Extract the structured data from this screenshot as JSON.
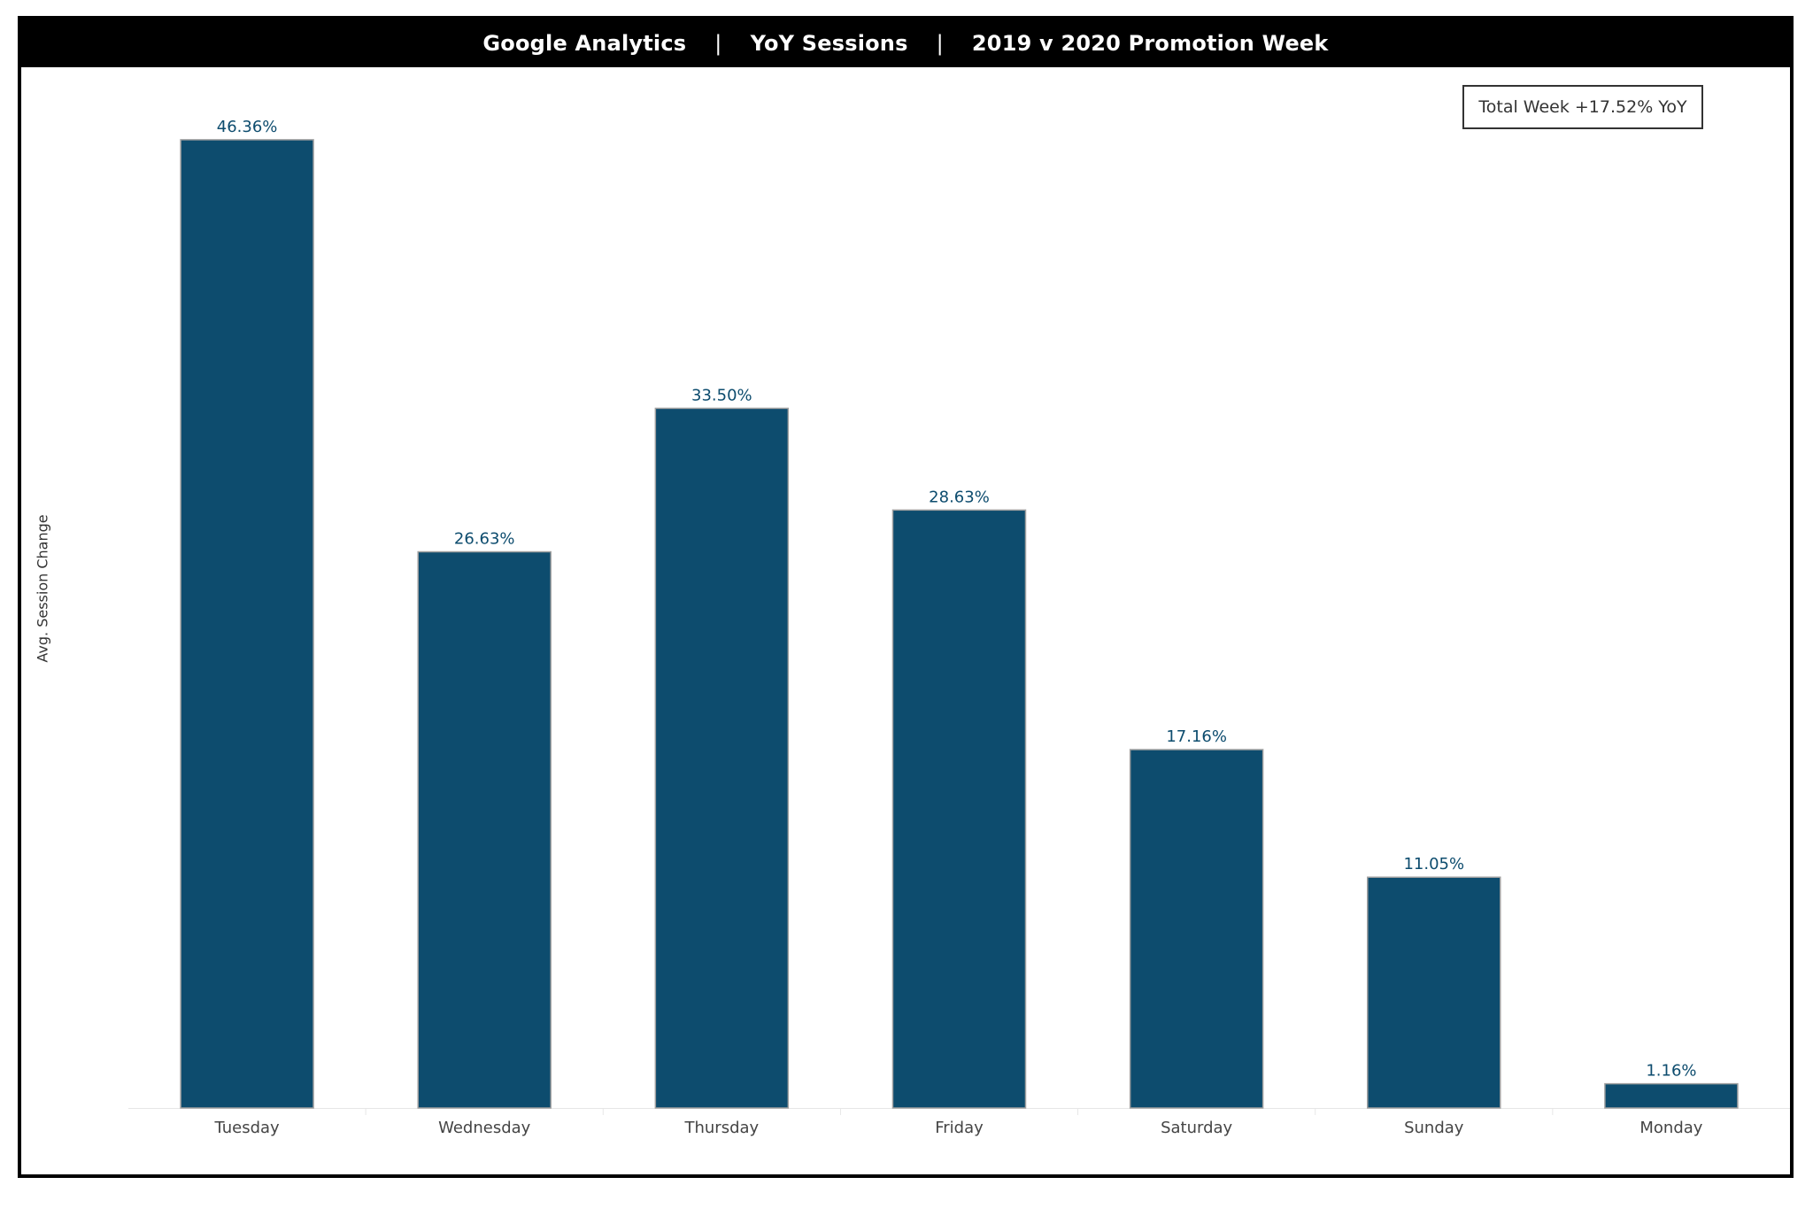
{
  "header": {
    "part1": "Google Analytics",
    "sep1": "|",
    "part2": "YoY Sessions",
    "sep2": "|",
    "part3": "2019 v 2020 Promotion Week"
  },
  "annotation": {
    "total_week": "Total Week +17.52% YoY"
  },
  "colors": {
    "bar": "#0D4C6E",
    "bar_border": "#a0a0a0",
    "label": "#0D4C6E",
    "axis_text": "#444444",
    "gridline": "#e6e6e6"
  },
  "chart_data": {
    "type": "bar",
    "title": "Google Analytics | YoY Sessions | 2019 v 2020 Promotion Week",
    "xlabel": "",
    "ylabel": "Avg. Session Change",
    "categories": [
      "Tuesday",
      "Wednesday",
      "Thursday",
      "Friday",
      "Saturday",
      "Sunday",
      "Monday"
    ],
    "values": [
      46.36,
      26.63,
      33.5,
      28.63,
      17.16,
      11.05,
      1.16
    ],
    "value_labels": [
      "46.36%",
      "26.63%",
      "33.50%",
      "28.63%",
      "17.16%",
      "11.05%",
      "1.16%"
    ],
    "ylim": [
      0,
      50
    ],
    "grid": false,
    "legend": "none"
  }
}
